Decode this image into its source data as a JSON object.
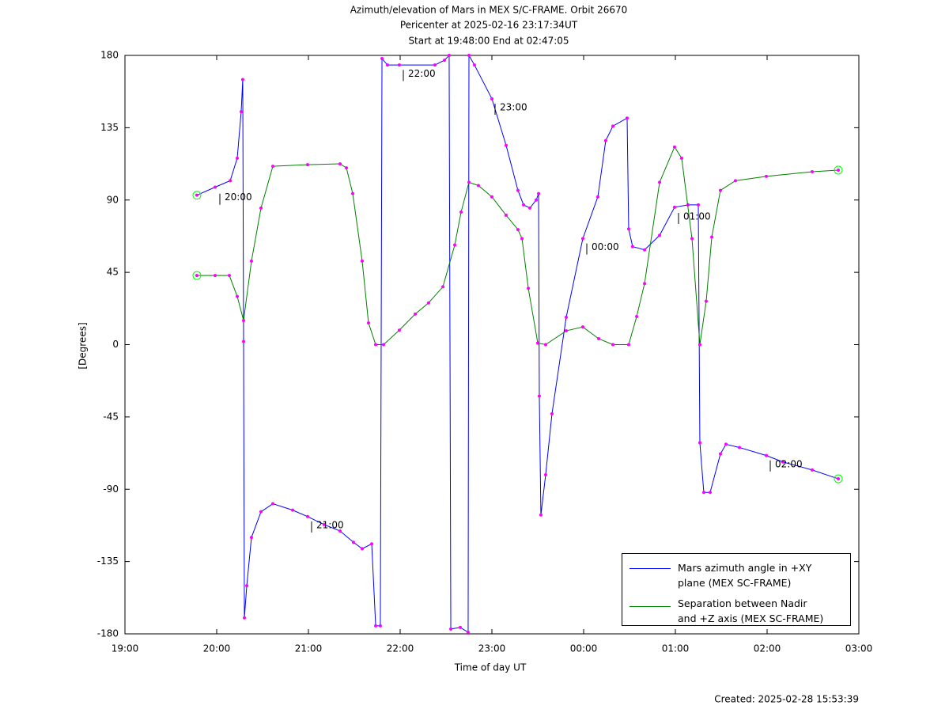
{
  "chart_data": {
    "type": "line",
    "title": "Azimuth/elevation of Mars in MEX S/C-FRAME.  Orbit 26670",
    "subtitle": [
      "Pericenter at 2025-02-16 23:17:34UT",
      "Start at 19:48:00 End at 02:47:05"
    ],
    "x_label": "Time of day UT",
    "y_label": "[Degrees]",
    "footer": "Created: 2025-02-28 15:53:39",
    "xlim": [
      19,
      27
    ],
    "xticks": [
      {
        "value": 19,
        "label": "19:00"
      },
      {
        "value": 20,
        "label": "20:00"
      },
      {
        "value": 21,
        "label": "21:00"
      },
      {
        "value": 22,
        "label": "22:00"
      },
      {
        "value": 23,
        "label": "23:00"
      },
      {
        "value": 24,
        "label": "00:00"
      },
      {
        "value": 25,
        "label": "01:00"
      },
      {
        "value": 26,
        "label": "02:00"
      },
      {
        "value": 27,
        "label": "03:00"
      }
    ],
    "ylim": [
      -180,
      180
    ],
    "yticks": [
      -180,
      -135,
      -90,
      -45,
      0,
      45,
      90,
      135,
      180
    ],
    "series": [
      {
        "name": "Mars azimuth angle in +XY\nplane (MEX SC-FRAME)",
        "color": "#0000ff",
        "x": [
          19.784,
          19.983,
          20.147,
          20.224,
          20.267,
          20.284,
          20.293,
          20.302,
          20.328,
          20.379,
          20.483,
          20.612,
          20.828,
          20.991,
          21.172,
          21.345,
          21.491,
          21.586,
          21.69,
          21.733,
          21.784,
          21.802,
          21.862,
          21.991,
          22.379,
          22.483,
          22.534,
          22.552,
          22.655,
          22.741,
          22.75,
          22.81,
          23.0,
          23.155,
          23.284,
          23.345,
          23.414,
          23.483,
          23.509,
          23.517,
          23.534,
          23.586,
          23.655,
          23.81,
          23.991,
          24.155,
          24.241,
          24.319,
          24.474,
          24.491,
          24.534,
          24.664,
          24.828,
          24.991,
          25.138,
          25.25,
          25.267,
          25.31,
          25.379,
          25.491,
          25.552,
          25.698,
          25.991,
          26.172,
          26.491,
          26.776
        ],
        "values": [
          93,
          98,
          102,
          116,
          145,
          165,
          2,
          -170,
          -150,
          -120,
          -104,
          -99,
          -103,
          -107,
          -112,
          -116,
          -123,
          -127,
          -124,
          -175,
          -175,
          178,
          174,
          174,
          174,
          177,
          180,
          -177,
          -176,
          -179,
          180,
          174,
          153,
          124,
          96,
          87,
          85,
          90,
          94,
          -32,
          -106,
          -81,
          -43,
          17,
          66,
          92,
          127,
          136,
          141,
          72,
          61,
          59,
          68,
          85.5,
          87,
          87,
          -61,
          -92,
          -92,
          -68,
          -62,
          -64,
          -69,
          -73,
          -78,
          -83.5
        ]
      },
      {
        "name": "Separation between Nadir\nand +Z axis (MEX SC-FRAME)",
        "color": "#008000",
        "x": [
          19.784,
          19.983,
          20.138,
          20.224,
          20.293,
          20.379,
          20.483,
          20.612,
          20.991,
          21.345,
          21.414,
          21.483,
          21.586,
          21.655,
          21.733,
          21.819,
          21.991,
          22.164,
          22.31,
          22.466,
          22.595,
          22.664,
          22.75,
          22.853,
          23.0,
          23.155,
          23.284,
          23.328,
          23.397,
          23.5,
          23.586,
          23.81,
          23.991,
          24.164,
          24.319,
          24.491,
          24.578,
          24.664,
          24.828,
          24.991,
          25.069,
          25.181,
          25.267,
          25.336,
          25.397,
          25.491,
          25.655,
          25.991,
          26.491,
          26.776
        ],
        "values": [
          43,
          43,
          43,
          30,
          15,
          52,
          85,
          111,
          112,
          112.5,
          110,
          94,
          52,
          13.5,
          0,
          0,
          9,
          19,
          26,
          36,
          62,
          82.5,
          101,
          99,
          92,
          80.5,
          71.6,
          66,
          35,
          1,
          0,
          8.6,
          11,
          3.7,
          0,
          0,
          17.5,
          38,
          101,
          123,
          116,
          66,
          0,
          27,
          67,
          96,
          102,
          104.7,
          107.6,
          108.6
        ]
      }
    ],
    "annotations": [
      {
        "text": "20:00",
        "x": 20.0,
        "y": 92
      },
      {
        "text": "21:00",
        "x": 21.0,
        "y": -112
      },
      {
        "text": "22:00",
        "x": 22.0,
        "y": 169
      },
      {
        "text": "23:00",
        "x": 23.0,
        "y": 148
      },
      {
        "text": "00:00",
        "x": 24.0,
        "y": 61
      },
      {
        "text": "01:00",
        "x": 25.0,
        "y": 80
      },
      {
        "text": "02:00",
        "x": 26.0,
        "y": -74
      }
    ],
    "marker_color": "#ff00ff"
  }
}
